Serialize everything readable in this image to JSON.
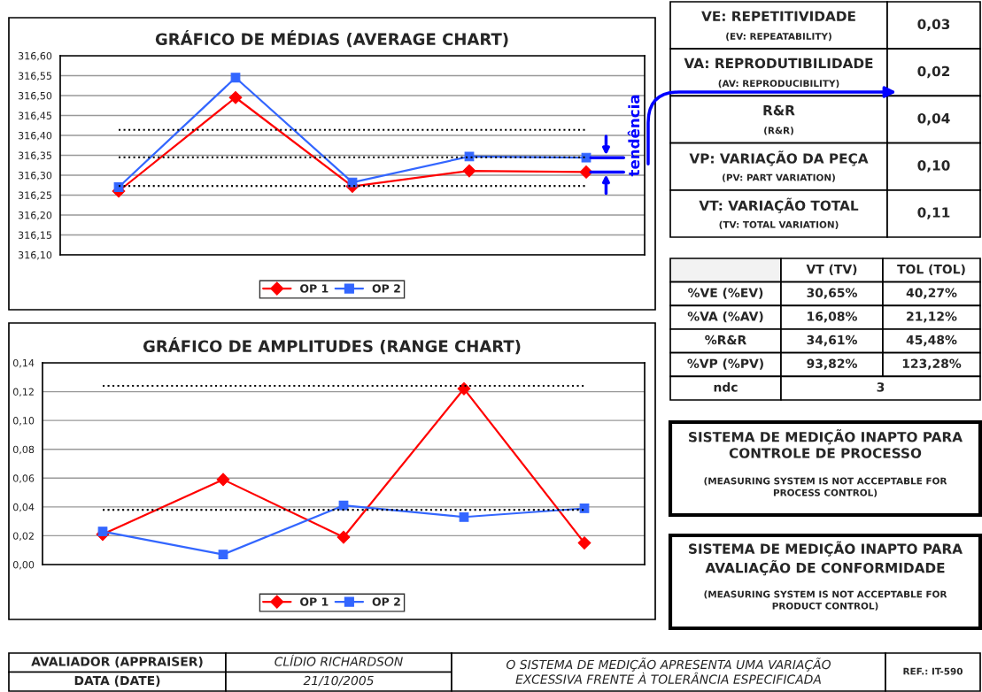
{
  "chart_data": [
    {
      "type": "line",
      "title": "GRÁFICO DE MÉDIAS (AVERAGE CHART)",
      "categories": [
        null,
        null,
        null,
        null,
        null
      ],
      "series": [
        {
          "name": "OP 1",
          "color": "#ff0000",
          "marker": "diamond",
          "values": [
            316.26,
            316.495,
            316.272,
            316.311,
            316.308
          ]
        },
        {
          "name": "OP 2",
          "color": "#3366ff",
          "marker": "square",
          "values": [
            316.27,
            316.545,
            316.282,
            316.347,
            316.344
          ]
        }
      ],
      "ylim": [
        316.1,
        316.6
      ],
      "yticks": [
        {
          "value": 316.1,
          "label": "316,10"
        },
        {
          "value": 316.15,
          "label": "316,15"
        },
        {
          "value": 316.2,
          "label": "316,20"
        },
        {
          "value": 316.25,
          "label": "316,25"
        },
        {
          "value": 316.3,
          "label": "316,30"
        },
        {
          "value": 316.35,
          "label": "316,35"
        },
        {
          "value": 316.4,
          "label": "316,40"
        },
        {
          "value": 316.45,
          "label": "316,45"
        },
        {
          "value": 316.5,
          "label": "316,50"
        },
        {
          "value": 316.55,
          "label": "316,55"
        },
        {
          "value": 316.6,
          "label": "316,60"
        }
      ],
      "ref_lines": [
        {
          "axis": "y",
          "value": 316.414,
          "color": "#000000",
          "line_style": "dotted"
        },
        {
          "axis": "y",
          "value": 316.345,
          "color": "#000000",
          "line_style": "dotted"
        },
        {
          "axis": "y",
          "value": 316.273,
          "color": "#000000",
          "line_style": "dotted"
        }
      ],
      "annotations": [
        "tendência"
      ],
      "grid": "y",
      "legend": "bottom",
      "tick_labels": "y"
    },
    {
      "type": "other",
      "annotations": [
        "VE: REPETITIVIDADE",
        "(EV: REPEATABILITY)",
        "0,03",
        "VA: REPRODUTIBILIDADE",
        "(AV: REPRODUCIBILITY)",
        "0,02",
        "R&R",
        "(R&R)",
        "0,04",
        "VP: VARIAÇÃO DA PEÇA",
        "(PV: PART VARIATION)",
        "0,10",
        "VT: VARIAÇÃO TOTAL",
        "(TV: TOTAL VARIATION)",
        "0,11"
      ]
    },
    {
      "type": "other",
      "annotations": [
        "VT (TV)",
        "TOL (TOL)",
        "%VE (%EV)",
        "30,65%",
        "40,27%",
        "%VA (%AV)",
        "16,08%",
        "21,12%",
        "%R&R",
        "34,61%",
        "45,48%",
        "%VP (%PV)",
        "93,82%",
        "123,28%",
        "ndc",
        "3"
      ]
    },
    {
      "type": "line",
      "title": "GRÁFICO DE AMPLITUDES (RANGE CHART)",
      "categories": [
        null,
        null,
        null,
        null,
        null
      ],
      "series": [
        {
          "name": "OP 1",
          "color": "#ff0000",
          "marker": "diamond",
          "values": [
            0.021,
            0.059,
            0.019,
            0.122,
            0.015
          ]
        },
        {
          "name": "OP 2",
          "color": "#3366ff",
          "marker": "square",
          "values": [
            0.023,
            0.007,
            0.041,
            0.033,
            0.039
          ]
        }
      ],
      "ylim": [
        0,
        0.14
      ],
      "yticks": [
        {
          "value": 0,
          "label": "0,00"
        },
        {
          "value": 0.02,
          "label": "0,02"
        },
        {
          "value": 0.04,
          "label": "0,04"
        },
        {
          "value": 0.06,
          "label": "0,06"
        },
        {
          "value": 0.08,
          "label": "0,08"
        },
        {
          "value": 0.1,
          "label": "0,10"
        },
        {
          "value": 0.12,
          "label": "0,12"
        },
        {
          "value": 0.14,
          "label": "0,14"
        }
      ],
      "ref_lines": [
        {
          "axis": "y",
          "value": 0.124,
          "color": "#000000",
          "line_style": "dotted"
        },
        {
          "axis": "y",
          "value": 0.038,
          "color": "#000000",
          "line_style": "dotted"
        }
      ],
      "grid": "y",
      "legend": "bottom",
      "tick_labels": "y"
    },
    {
      "type": "other",
      "annotations": [
        "SISTEMA DE MEDIÇÃO INAPTO PARA\nCONTROLE DE PROCESSO",
        "(MEASURING SYSTEM IS NOT ACCEPTABLE FOR\nPROCESS CONTROL)"
      ]
    },
    {
      "type": "other",
      "annotations": [
        "SISTEMA DE MEDIÇÃO INAPTO PARA\nAVALIAÇÃO DE CONFORMIDADE",
        "(MEASURING SYSTEM IS NOT ACCEPTABLE FOR\nPRODUCT CONTROL)"
      ]
    },
    {
      "type": "other",
      "annotations": [
        "AVALIADOR (APPRAISER)",
        "CLÍDIO RICHARDSON",
        "DATA (DATE)",
        "21/10/2005",
        "O SISTEMA DE MEDIÇÃO APRESENTA UMA VARIAÇÃO\nEXCESSIVA FRENTE À TOLERÂNCIA ESPECIFICADA",
        "REF.: IT-590"
      ]
    }
  ]
}
